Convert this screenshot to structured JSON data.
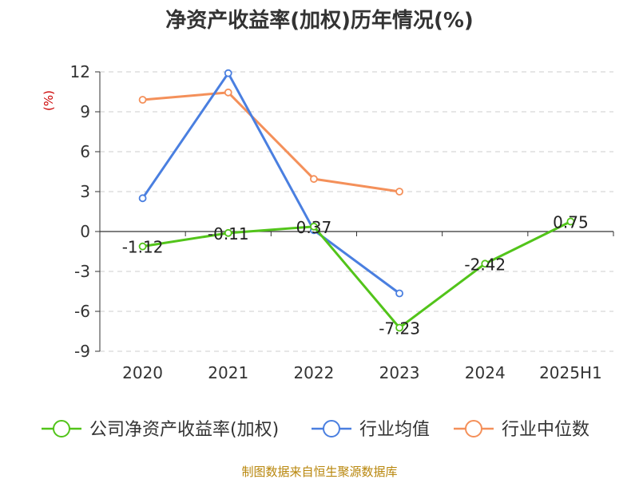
{
  "chart_data": {
    "type": "line",
    "title": "净资产收益率(加权)历年情况(%)",
    "ylabel": "(%)",
    "xlabel": "",
    "categories": [
      "2020",
      "2021",
      "2022",
      "2023",
      "2024",
      "2025H1"
    ],
    "ylim": [
      -9,
      12
    ],
    "yticks": [
      12,
      9,
      6,
      3,
      0,
      -3,
      -6,
      -9
    ],
    "grid": true,
    "legend_position": "bottom",
    "series": [
      {
        "name": "公司净资产收益率(加权)",
        "color": "#52c41a",
        "values": [
          -1.12,
          -0.11,
          0.37,
          -7.23,
          -2.42,
          0.75
        ],
        "labels": [
          "-1.12",
          "-0.11",
          "0.37",
          "-7.23",
          "-2.42",
          "0.75"
        ]
      },
      {
        "name": "行业均值",
        "color": "#4a7fe0",
        "values": [
          2.5,
          11.9,
          0.1,
          -4.65,
          null,
          null
        ]
      },
      {
        "name": "行业中位数",
        "color": "#f4905a",
        "values": [
          9.9,
          10.45,
          3.95,
          3.0,
          null,
          null
        ]
      }
    ],
    "source": "制图数据来自恒生聚源数据库"
  }
}
